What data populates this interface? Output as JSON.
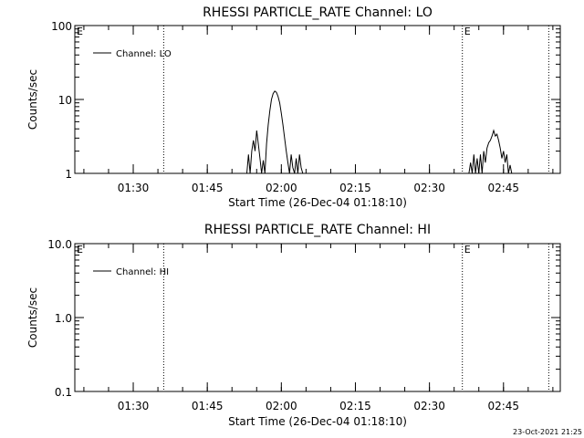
{
  "chart_data": [
    {
      "type": "line",
      "title": "RHESSI PARTICLE_RATE Channel: LO",
      "xlabel": "Start Time (26-Dec-04 01:18:10)",
      "ylabel": "Counts/sec",
      "y_scale": "log",
      "ylim": [
        1,
        100
      ],
      "y_ticks": [
        1,
        10,
        100
      ],
      "y_tick_labels": [
        "1",
        "10",
        "100"
      ],
      "xlim": [
        "01:18:10",
        "02:56:30"
      ],
      "x_ticks": [
        "01:30",
        "01:45",
        "02:00",
        "02:15",
        "02:30",
        "02:45"
      ],
      "grid": false,
      "legend": {
        "label": "Channel: LO",
        "placement": "top-left"
      },
      "markers": [
        {
          "time": "01:18:10",
          "label": "E"
        },
        {
          "time": "01:36:10",
          "label": ""
        },
        {
          "time": "02:36:40",
          "label": "E"
        },
        {
          "time": "02:54:10",
          "label": ""
        }
      ],
      "series": [
        {
          "name": "Channel: LO",
          "x": [
            "01:53:00",
            "01:53:20",
            "01:53:40",
            "01:54:00",
            "01:54:20",
            "01:54:40",
            "01:55:00",
            "01:55:20",
            "01:55:40",
            "01:56:00",
            "01:56:20",
            "01:56:40",
            "01:57:00",
            "01:57:20",
            "01:57:40",
            "01:58:00",
            "01:58:20",
            "01:58:40",
            "01:59:00",
            "01:59:20",
            "01:59:40",
            "02:00:00",
            "02:00:20",
            "02:00:40",
            "02:01:00",
            "02:01:20",
            "02:01:40",
            "02:02:00",
            "02:02:20",
            "02:02:40",
            "02:03:00",
            "02:03:20",
            "02:03:40",
            "02:04:00",
            "02:04:20",
            "02:04:40",
            "02:38:00",
            "02:38:20",
            "02:38:40",
            "02:39:00",
            "02:39:20",
            "02:39:40",
            "02:40:00",
            "02:40:20",
            "02:40:40",
            "02:41:00",
            "02:41:20",
            "02:41:40",
            "02:42:00",
            "02:42:20",
            "02:42:40",
            "02:43:00",
            "02:43:20",
            "02:43:40",
            "02:44:00",
            "02:44:20",
            "02:44:40",
            "02:45:00",
            "02:45:20",
            "02:45:40",
            "02:46:00",
            "02:46:20",
            "02:46:40",
            "02:47:00",
            "02:47:20"
          ],
          "values": [
            1,
            1.8,
            1,
            2,
            2.8,
            2,
            3.8,
            2.5,
            1.6,
            1,
            1.5,
            1,
            2.5,
            4.5,
            7,
            10,
            12,
            13,
            12.5,
            11,
            9,
            6.5,
            4.5,
            3,
            2,
            1.4,
            1,
            1.8,
            1.2,
            1,
            1.6,
            1,
            1.8,
            1.2,
            1,
            1,
            1,
            1.4,
            1,
            1.8,
            1,
            1.6,
            1,
            1.8,
            1,
            2,
            1.4,
            2.2,
            2.6,
            2.8,
            3.2,
            3.8,
            3.2,
            3.4,
            2.8,
            2.2,
            1.6,
            2,
            1.4,
            1.8,
            1,
            1.3,
            1,
            1,
            1
          ]
        }
      ]
    },
    {
      "type": "line",
      "title": "RHESSI PARTICLE_RATE Channel: HI",
      "xlabel": "Start Time (26-Dec-04 01:18:10)",
      "ylabel": "Counts/sec",
      "y_scale": "log",
      "ylim": [
        0.1,
        10
      ],
      "y_ticks": [
        0.1,
        1,
        10
      ],
      "y_tick_labels": [
        "0.1",
        "1.0",
        "10.0"
      ],
      "xlim": [
        "01:18:10",
        "02:56:30"
      ],
      "x_ticks": [
        "01:30",
        "01:45",
        "02:00",
        "02:15",
        "02:30",
        "02:45"
      ],
      "grid": false,
      "legend": {
        "label": "Channel: HI",
        "placement": "top-left"
      },
      "markers": [
        {
          "time": "01:18:10",
          "label": "E"
        },
        {
          "time": "01:36:10",
          "label": ""
        },
        {
          "time": "02:36:40",
          "label": "E"
        },
        {
          "time": "02:54:10",
          "label": ""
        }
      ],
      "series": [
        {
          "name": "Channel: HI",
          "x": [],
          "values": []
        }
      ]
    }
  ],
  "footer_timestamp": "23-Oct-2021 21:25"
}
